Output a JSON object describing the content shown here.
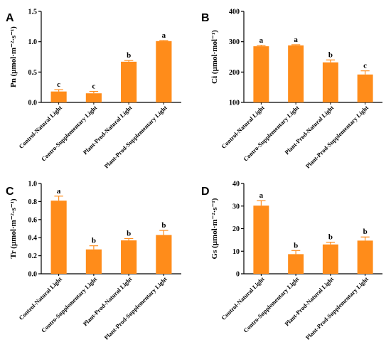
{
  "figure": {
    "bar_color": "#FF8C1A",
    "error_color": "#FF8C1A",
    "axis_color": "#000000"
  },
  "chart_data": [
    {
      "id": "A",
      "panel_letter": "A",
      "type": "bar",
      "ylabel": "Pn (µmol·m⁻²·s⁻¹)",
      "ylim": [
        0,
        1.5
      ],
      "yticks": [
        "0.0",
        "0.5",
        "1.0",
        "1.5"
      ],
      "ytick_values": [
        0,
        0.5,
        1.0,
        1.5
      ],
      "categories": [
        "Control-Natural Light",
        "Contro-Supplementary Light",
        "Plant-Prod-Natural Light",
        "Plant-Prod-Supplementary Light"
      ],
      "values": [
        0.18,
        0.15,
        0.67,
        1.01
      ],
      "errors": [
        0.03,
        0.03,
        0.02,
        0.01
      ],
      "significance": [
        "c",
        "c",
        "b",
        "a"
      ]
    },
    {
      "id": "B",
      "panel_letter": "B",
      "type": "bar",
      "ylabel": "Ci (µmol·mol⁻¹)",
      "ylim": [
        100,
        400
      ],
      "yticks": [
        "100",
        "200",
        "300",
        "400"
      ],
      "ytick_values": [
        100,
        200,
        300,
        400
      ],
      "categories": [
        "Control-Natural Light",
        "Contro-Supplementary Light",
        "Plant-Prod-Natural Light",
        "Plant-Prod-Supplementary Light"
      ],
      "values": [
        285,
        288,
        232,
        192
      ],
      "errors": [
        3,
        2,
        8,
        12
      ],
      "significance": [
        "a",
        "a",
        "b",
        "c"
      ]
    },
    {
      "id": "C",
      "panel_letter": "C",
      "type": "bar",
      "ylabel": "Tr (µmol·m⁻²·s⁻¹)",
      "ylim": [
        0,
        1.0
      ],
      "yticks": [
        "0.0",
        "0.2",
        "0.4",
        "0.6",
        "0.8",
        "1.0"
      ],
      "ytick_values": [
        0,
        0.2,
        0.4,
        0.6,
        0.8,
        1.0
      ],
      "categories": [
        "Control-Natural Light",
        "Contro-Supplementary Light",
        "Plant-Prod-Natural Light",
        "Plant-Prod-Supplementary Light"
      ],
      "values": [
        0.81,
        0.27,
        0.37,
        0.43
      ],
      "errors": [
        0.05,
        0.04,
        0.02,
        0.05
      ],
      "significance": [
        "a",
        "b",
        "b",
        "b"
      ]
    },
    {
      "id": "D",
      "panel_letter": "D",
      "type": "bar",
      "ylabel": "Gs (µmol·m⁻²·s⁻¹)",
      "ylim": [
        0,
        40
      ],
      "yticks": [
        "0",
        "10",
        "20",
        "30",
        "40"
      ],
      "ytick_values": [
        0,
        10,
        20,
        30,
        40
      ],
      "categories": [
        "Control-Natural Light",
        "Contro-Supplementary Light",
        "Plant-Prod-Natural Light",
        "Plant-Prod-Supplementary Light"
      ],
      "values": [
        30.2,
        8.7,
        13.0,
        14.7
      ],
      "errors": [
        2.2,
        1.6,
        1.0,
        1.6
      ],
      "significance": [
        "a",
        "b",
        "b",
        "b"
      ]
    }
  ]
}
